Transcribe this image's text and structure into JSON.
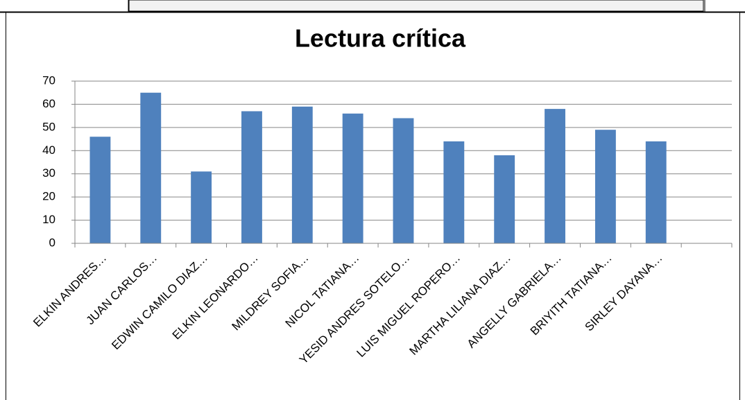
{
  "chart_data": {
    "type": "bar",
    "title": "Lectura crítica",
    "categories": [
      "ELKIN ANDRES…",
      "JUAN CARLOS…",
      "EDWIN CAMILO DIAZ…",
      "ELKIN LEONARDO…",
      "MILDREY SOFIA…",
      "NICOL TATIANA…",
      "YESID ANDRES SOTELO…",
      "LUIS MIGUEL ROPERO…",
      "MARTHA LILIANA DIAZ…",
      "ANGELLY GABRIELA…",
      "BRIYITH TATIANA…",
      "SIRLEY DAYANA…",
      null
    ],
    "values": [
      46,
      65,
      31,
      57,
      59,
      56,
      54,
      44,
      38,
      58,
      49,
      44,
      null
    ],
    "color": "#4f81bd",
    "ylim": [
      0,
      70
    ],
    "yticks": [
      0,
      10,
      20,
      30,
      40,
      50,
      60,
      70
    ],
    "grid": true
  }
}
